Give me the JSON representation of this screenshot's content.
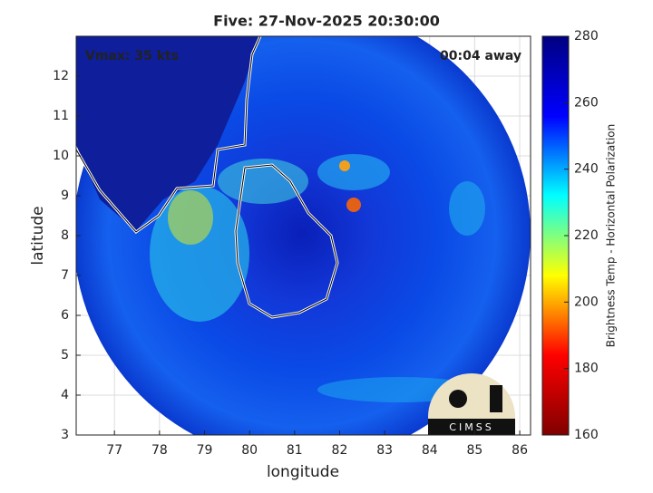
{
  "chart_data": {
    "type": "image",
    "title": "Five: 27-Nov-2025 20:30:00",
    "xlabel": "longitude",
    "ylabel": "latitude",
    "xlim": [
      76.15,
      86.24
    ],
    "xticks": [
      77,
      78,
      79,
      80,
      81,
      82,
      83,
      84,
      85,
      86
    ],
    "ylim": [
      3,
      13
    ],
    "yticks": [
      3,
      4,
      5,
      6,
      7,
      8,
      9,
      10,
      11,
      12
    ],
    "grid": true,
    "annotations": [
      "Vmax: 35 kts",
      "00:04 away"
    ],
    "logo": "CIMSS",
    "colorbar": {
      "label": "Brightness Temp - Horizontal Polarization",
      "colormap": "jet",
      "clim": [
        160,
        280
      ],
      "ticks": [
        160,
        180,
        200,
        220,
        240,
        260,
        280
      ]
    }
  }
}
